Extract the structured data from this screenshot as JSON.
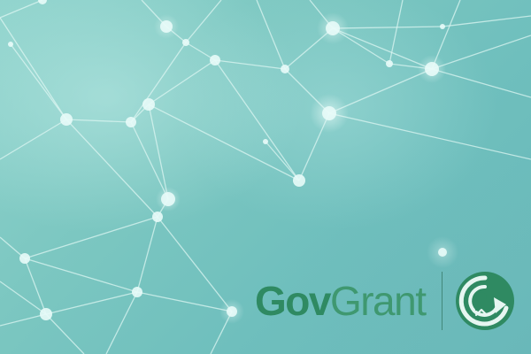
{
  "brand": {
    "part1": "Gov",
    "part2": "Grant"
  },
  "colors": {
    "primary_green": "#2f8a62",
    "background_teal": "#7cc4c0",
    "network_line": "#d8f4ef"
  },
  "icons": {
    "logo_mark": "govgrant-circular-arrow-icon"
  }
}
